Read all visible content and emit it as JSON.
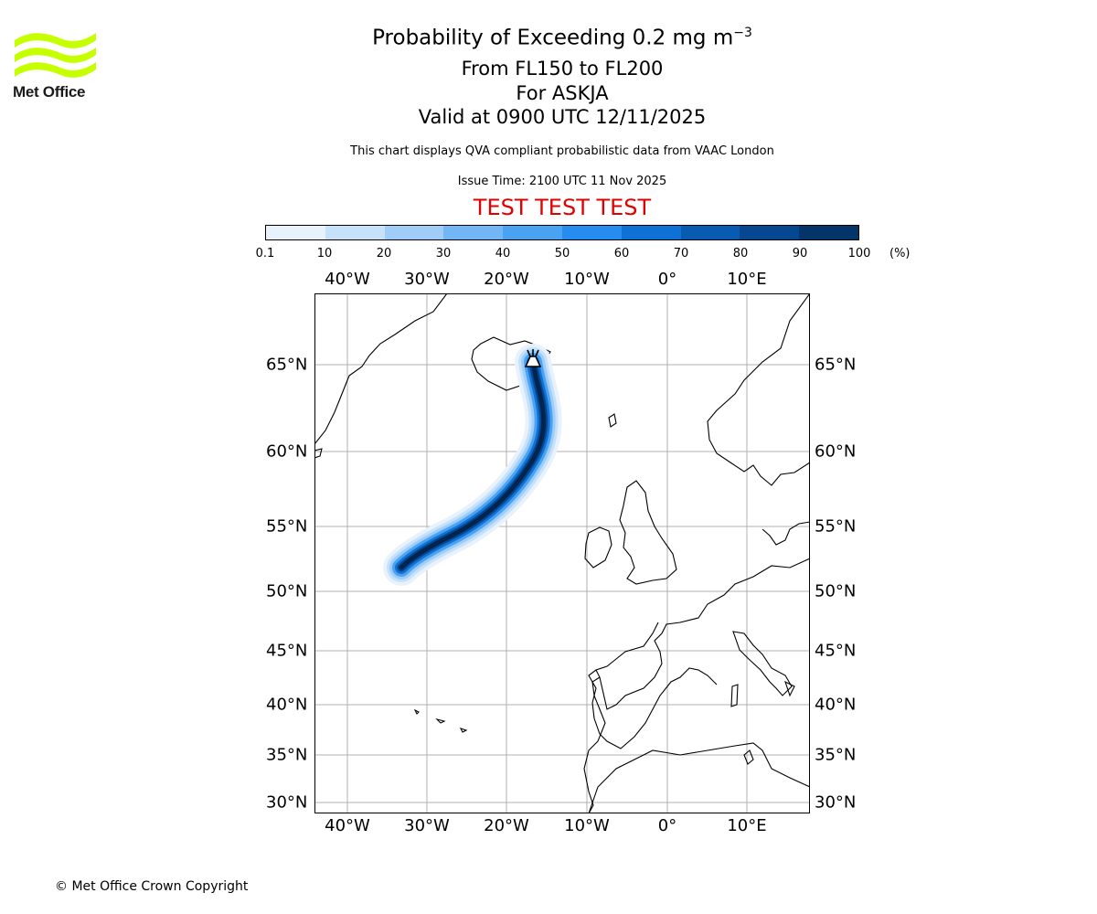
{
  "header": {
    "logo_text": "Met Office",
    "title_main": "Probability of Exceeding 0.2 mg m",
    "title_exp": "−3",
    "levels": "From FL150 to FL200",
    "volcano": "For ASKJA",
    "valid": "Valid at 0900 UTC 12/11/2025",
    "subtitle": "This chart displays QVA compliant probabilistic data from VAAC London",
    "issue_time": "Issue Time: 2100 UTC 11 Nov 2025",
    "test_banner": "TEST TEST TEST"
  },
  "colorbar": {
    "ticks": [
      "0.1",
      "10",
      "20",
      "30",
      "40",
      "50",
      "60",
      "70",
      "80",
      "90",
      "100"
    ],
    "unit": "(%)",
    "colors": [
      "#e8f2fd",
      "#c6e1fa",
      "#9fcdf8",
      "#72b6f5",
      "#4aa2f2",
      "#268ced",
      "#0f71d4",
      "#075bb0",
      "#054790",
      "#03346a",
      "#022550"
    ]
  },
  "map": {
    "lon_labels": [
      "40°W",
      "30°W",
      "20°W",
      "10°W",
      "0°",
      "10°E"
    ],
    "lat_labels": [
      "65°N",
      "60°N",
      "55°N",
      "50°N",
      "45°N",
      "40°N",
      "35°N",
      "30°N"
    ],
    "volcano_symbol": "volcano-icon"
  },
  "footer": {
    "copyright": "© Met Office Crown Copyright"
  }
}
